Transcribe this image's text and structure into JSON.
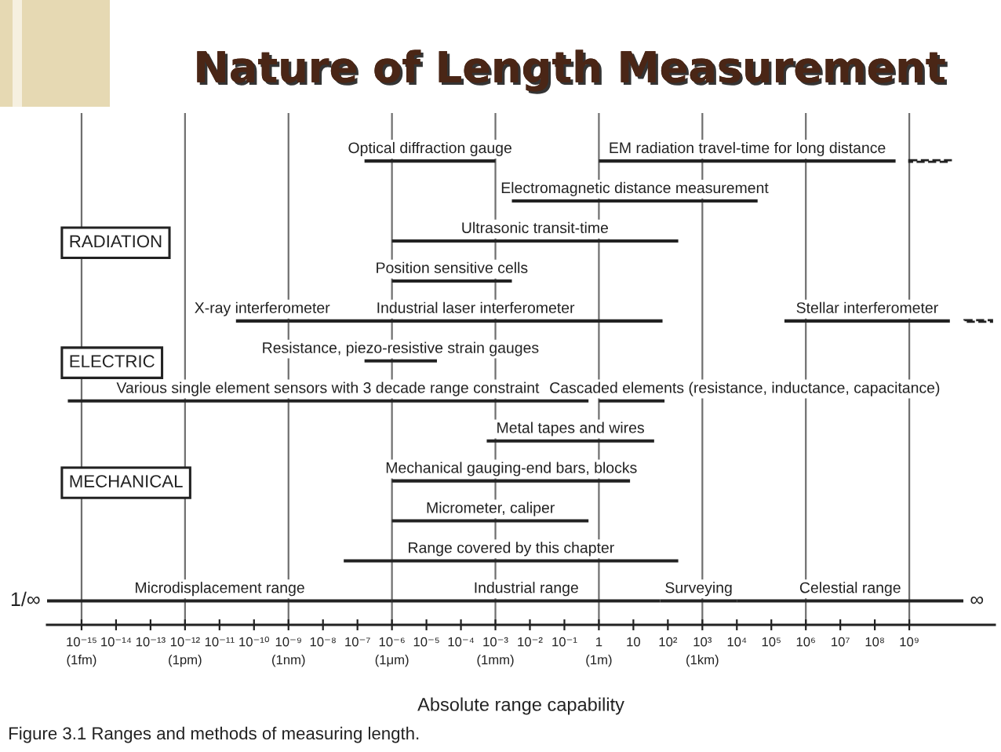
{
  "chart_data": {
    "type": "bar",
    "orientation": "horizontal",
    "log": "x",
    "title": "Nature of Length Measurement",
    "xlabel": "Absolute range capability",
    "annotations": [
      "Figure 3.1 Ranges and methods of measuring length.",
      {
        "text": "1/∞",
        "x": 1e-16
      },
      {
        "text": "∞",
        "x": 37000000000.0
      }
    ],
    "categories": [
      null,
      null,
      "RADIATION",
      null,
      null,
      "ELECTRIC",
      null,
      null,
      "MECHANICAL",
      null,
      null,
      null
    ],
    "xlim": [
      1e-16,
      300000000000.0
    ],
    "xticks": [
      {
        "value": 1e-15,
        "label": "10⁻¹⁵\n(1fm)"
      },
      {
        "value": 1e-14,
        "label": "10⁻¹⁴"
      },
      {
        "value": 1e-13,
        "label": "10⁻¹³"
      },
      {
        "value": 1e-12,
        "label": "10⁻¹²\n(1pm)"
      },
      {
        "value": 1e-11,
        "label": "10⁻¹¹"
      },
      {
        "value": 1e-10,
        "label": "10⁻¹⁰"
      },
      {
        "value": 1e-09,
        "label": "10⁻⁹\n(1nm)"
      },
      {
        "value": 1e-08,
        "label": "10⁻⁸"
      },
      {
        "value": 1e-07,
        "label": "10⁻⁷"
      },
      {
        "value": 1e-06,
        "label": "10⁻⁶\n(1μm)"
      },
      {
        "value": 1e-05,
        "label": "10⁻⁵"
      },
      {
        "value": 0.0001,
        "label": "10⁻⁴"
      },
      {
        "value": 0.001,
        "label": "10⁻³\n(1mm)"
      },
      {
        "value": 0.01,
        "label": "10⁻²"
      },
      {
        "value": 0.1,
        "label": "10⁻¹"
      },
      {
        "value": 1,
        "label": "1\n(1m)"
      },
      10,
      {
        "value": 100,
        "label": "10²"
      },
      {
        "value": 1000,
        "label": "10³\n(1km)"
      },
      {
        "value": 10000.0,
        "label": "10⁴"
      },
      {
        "value": 100000.0,
        "label": "10⁵"
      },
      {
        "value": 1000000.0,
        "label": "10⁶"
      },
      {
        "value": 10000000.0,
        "label": "10⁷"
      },
      {
        "value": 100000000.0,
        "label": "10⁸"
      },
      {
        "value": 1000000000.0,
        "label": "10⁹"
      }
    ],
    "ref_lines": [
      {
        "axis": "x",
        "value": 1e-15,
        "color": "#6f6f6f"
      },
      {
        "axis": "x",
        "value": 1e-12,
        "color": "#6f6f6f"
      },
      {
        "axis": "x",
        "value": 1e-09,
        "color": "#6f6f6f"
      },
      {
        "axis": "x",
        "value": 1e-06,
        "color": "#6f6f6f"
      },
      {
        "axis": "x",
        "value": 0.001,
        "color": "#6f6f6f"
      },
      {
        "axis": "x",
        "value": 1,
        "color": "#6f6f6f"
      },
      {
        "axis": "x",
        "value": 1000,
        "color": "#6f6f6f"
      },
      {
        "axis": "x",
        "value": 1000000.0,
        "color": "#6f6f6f"
      },
      {
        "axis": "x",
        "value": 1000000000.0,
        "color": "#6f6f6f"
      }
    ],
    "series": [
      {
        "name": "Optical diffraction gauge",
        "color": "#222222",
        "values": [
          0.001,
          null,
          null,
          null,
          null,
          null,
          null,
          null,
          null,
          null,
          null,
          null
        ],
        "base": [
          1.6e-07,
          null,
          null,
          null,
          null,
          null,
          null,
          null,
          null,
          null,
          null,
          null
        ]
      },
      {
        "name": "EM radiation travel-time for long distance",
        "color": "#222222",
        "values": [
          400000000.0,
          null,
          null,
          null,
          null,
          null,
          null,
          null,
          null,
          null,
          null,
          null
        ],
        "base": [
          1,
          null,
          null,
          null,
          null,
          null,
          null,
          null,
          null,
          null,
          null,
          null
        ]
      },
      {
        "color": "#222222",
        "line_style": "dashed",
        "values": [
          15000000000.0,
          null,
          null,
          null,
          null,
          null,
          null,
          null,
          null,
          null,
          null,
          null
        ],
        "base": [
          1000000000.0,
          null,
          null,
          null,
          null,
          null,
          null,
          null,
          null,
          null,
          null,
          null
        ]
      },
      {
        "name": "Electromagnetic distance measurement",
        "color": "#222222",
        "values": [
          null,
          40000.0,
          null,
          null,
          null,
          null,
          null,
          null,
          null,
          null,
          null,
          null
        ],
        "base": [
          null,
          0.003,
          null,
          null,
          null,
          null,
          null,
          null,
          null,
          null,
          null,
          null
        ]
      },
      {
        "name": "Ultrasonic transit-time",
        "color": "#222222",
        "values": [
          null,
          null,
          200,
          null,
          null,
          null,
          null,
          null,
          null,
          null,
          null,
          null
        ],
        "base": [
          null,
          null,
          1e-06,
          null,
          null,
          null,
          null,
          null,
          null,
          null,
          null,
          null
        ]
      },
      {
        "name": "Position sensitive cells",
        "color": "#222222",
        "values": [
          null,
          null,
          null,
          0.003,
          null,
          null,
          null,
          null,
          null,
          null,
          null,
          null
        ],
        "base": [
          null,
          null,
          null,
          1e-06,
          null,
          null,
          null,
          null,
          null,
          null,
          null,
          null
        ]
      },
      {
        "name": "X-ray interferometer",
        "color": "#222222",
        "values": [
          null,
          null,
          null,
          null,
          9.7e-10,
          null,
          null,
          null,
          null,
          null,
          null,
          null
        ],
        "base": [
          null,
          null,
          null,
          null,
          3e-11,
          null,
          null,
          null,
          null,
          null,
          null,
          null
        ]
      },
      {
        "name": "Industrial laser interferometer",
        "color": "#222222",
        "values": [
          null,
          null,
          null,
          null,
          70,
          null,
          null,
          null,
          null,
          null,
          null,
          null
        ],
        "base": [
          null,
          null,
          null,
          null,
          1e-09,
          null,
          null,
          null,
          null,
          null,
          null,
          null
        ]
      },
      {
        "name": "Stellar interferometer",
        "color": "#222222",
        "values": [
          null,
          null,
          null,
          null,
          15000000000.0,
          null,
          null,
          null,
          null,
          null,
          null,
          null
        ],
        "base": [
          null,
          null,
          null,
          null,
          240000.0,
          null,
          null,
          null,
          null,
          null,
          null,
          null
        ]
      },
      {
        "color": "#222222",
        "line_style": "dashed",
        "values": [
          null,
          null,
          null,
          null,
          210000000000.0,
          null,
          null,
          null,
          null,
          null,
          null,
          null
        ],
        "base": [
          null,
          null,
          null,
          null,
          40000000000.0,
          null,
          null,
          null,
          null,
          null,
          null,
          null
        ]
      },
      {
        "name": "Resistance, piezo-resistive strain gauges",
        "color": "#222222",
        "values": [
          null,
          null,
          null,
          null,
          null,
          2e-05,
          null,
          null,
          null,
          null,
          null,
          null
        ],
        "base": [
          null,
          null,
          null,
          null,
          null,
          1.6e-07,
          null,
          null,
          null,
          null,
          null,
          null
        ]
      },
      {
        "name": "Various single element sensors with 3 decade range constraint",
        "color": "#222222",
        "values": [
          null,
          null,
          null,
          null,
          null,
          null,
          0.5,
          null,
          null,
          null,
          null,
          null
        ],
        "base": [
          null,
          null,
          null,
          null,
          null,
          null,
          4e-16,
          null,
          null,
          null,
          null,
          null
        ]
      },
      {
        "name": "Cascaded elements (resistance, inductance, capacitance)",
        "color": "#222222",
        "values": [
          null,
          null,
          null,
          null,
          null,
          null,
          79,
          null,
          null,
          null,
          null,
          null
        ],
        "base": [
          null,
          null,
          null,
          null,
          null,
          null,
          1,
          null,
          null,
          null,
          null,
          null
        ]
      },
      {
        "name": "Metal tapes and wires",
        "color": "#222222",
        "values": [
          null,
          null,
          null,
          null,
          null,
          null,
          null,
          40,
          null,
          null,
          null,
          null
        ],
        "base": [
          null,
          null,
          null,
          null,
          null,
          null,
          null,
          0.00056,
          null,
          null,
          null,
          null
        ]
      },
      {
        "name": "Mechanical gauging-end bars, blocks",
        "color": "#222222",
        "values": [
          null,
          null,
          null,
          null,
          null,
          null,
          null,
          null,
          8,
          null,
          null,
          null
        ],
        "base": [
          null,
          null,
          null,
          null,
          null,
          null,
          null,
          null,
          1e-06,
          null,
          null,
          null
        ]
      },
      {
        "name": "Micrometer, caliper",
        "color": "#222222",
        "values": [
          null,
          null,
          null,
          null,
          null,
          null,
          null,
          null,
          null,
          0.5,
          null,
          null
        ],
        "base": [
          null,
          null,
          null,
          null,
          null,
          null,
          null,
          null,
          null,
          1e-06,
          null,
          null
        ]
      },
      {
        "name": "Range covered by this chapter",
        "color": "#222222",
        "values": [
          null,
          null,
          null,
          null,
          null,
          null,
          null,
          null,
          null,
          null,
          200,
          null
        ],
        "base": [
          null,
          null,
          null,
          null,
          null,
          null,
          null,
          null,
          null,
          null,
          4e-08,
          null
        ]
      },
      {
        "name": "Microdisplacement range",
        "color": "#222222",
        "values": [
          null,
          null,
          null,
          null,
          null,
          null,
          null,
          null,
          null,
          null,
          null,
          1e-06
        ],
        "base": [
          null,
          null,
          null,
          null,
          null,
          null,
          null,
          null,
          null,
          null,
          null,
          1e-16
        ]
      },
      {
        "name": "Industrial range",
        "color": "#222222",
        "values": [
          null,
          null,
          null,
          null,
          null,
          null,
          null,
          null,
          null,
          null,
          null,
          60
        ],
        "base": [
          null,
          null,
          null,
          null,
          null,
          null,
          null,
          null,
          null,
          null,
          null,
          1e-06
        ]
      },
      {
        "name": "Surveying",
        "color": "#222222",
        "values": [
          null,
          null,
          null,
          null,
          null,
          null,
          null,
          null,
          null,
          null,
          null,
          10000.0
        ],
        "base": [
          null,
          null,
          null,
          null,
          null,
          null,
          null,
          null,
          null,
          null,
          null,
          60
        ]
      },
      {
        "name": "Celestial range",
        "color": "#222222",
        "values": [
          null,
          null,
          null,
          null,
          null,
          null,
          null,
          null,
          null,
          null,
          null,
          37000000000.0
        ],
        "base": [
          null,
          null,
          null,
          null,
          null,
          null,
          null,
          null,
          null,
          null,
          null,
          10000.0
        ]
      }
    ]
  }
}
